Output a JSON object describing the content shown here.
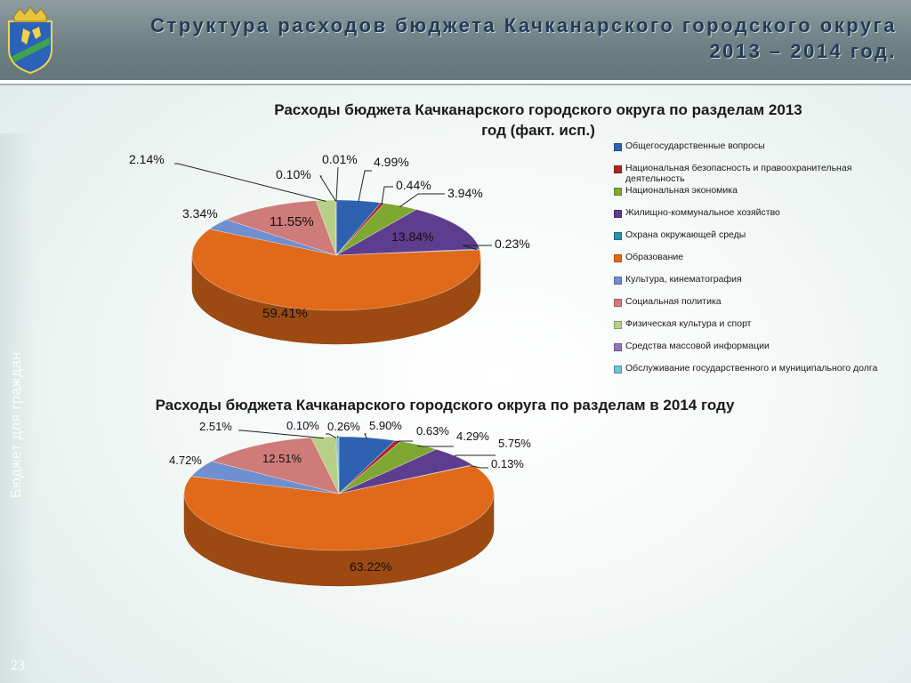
{
  "header": {
    "title_line1": "Структура расходов бюджета Качканарского городского округа",
    "title_line2": "2013 – 2014 год."
  },
  "sidebar": {
    "text": "Бюджет для граждан"
  },
  "page_number": "23",
  "colors": {
    "header": "#6f8185",
    "title": "#253b57"
  },
  "chart_data": [
    {
      "type": "pie",
      "title": "Расходы бюджета Качканарского городского округа по разделам 2013 год (факт. исп.)",
      "title_lines": [
        "Расходы бюджета Качканарского городского округа по разделам 2013",
        "год (факт. исп.)"
      ],
      "legend_position": "right",
      "slices": [
        {
          "label": "Общегосударственные вопросы",
          "value": 4.99,
          "display": "4.99%",
          "color": "#2e62b0"
        },
        {
          "label": "Национальная безопасность и правоохранительная деятельность",
          "value": 0.44,
          "display": "0.44%",
          "color": "#a8282a"
        },
        {
          "label": "Национальная экономика",
          "value": 3.94,
          "display": "3.94%",
          "color": "#7fa832"
        },
        {
          "label": "Жилищно-коммунальное хозяйство",
          "value": 13.84,
          "display": "13.84%",
          "color": "#5e3d8e"
        },
        {
          "label": "Охрана окружающей среды",
          "value": 0.23,
          "display": "0.23%",
          "color": "#2d8fa9"
        },
        {
          "label": "Образование",
          "value": 59.41,
          "display": "59.41%",
          "color": "#e06a1a"
        },
        {
          "label": "Культура, кинематография",
          "value": 3.34,
          "display": "3.34%",
          "color": "#6f8fcf"
        },
        {
          "label": "Социальная политика",
          "value": 11.55,
          "display": "11.55%",
          "color": "#cf7b79"
        },
        {
          "label": "Физическая культура и спорт",
          "value": 2.14,
          "display": "2.14%",
          "color": "#b7cf86"
        },
        {
          "label": "Средства массовой информации",
          "value": 0.1,
          "display": "0.10%",
          "color": "#8e7ab5"
        },
        {
          "label": "Обслуживание государственного и муниципального долга",
          "value": 0.01,
          "display": "0.01%",
          "color": "#6fc3d6"
        }
      ]
    },
    {
      "type": "pie",
      "title": "Расходы бюджета Качканарского городского округа по разделам в 2014 году",
      "title_lines": [
        "Расходы бюджета Качканарского городского округа по разделам в 2014 году"
      ],
      "legend_position": "right",
      "slices": [
        {
          "label": "Общегосударственные вопросы",
          "value": 5.9,
          "display": "5.90%",
          "color": "#2e62b0"
        },
        {
          "label": "Национальная безопасность и правоохранительная деятельность",
          "value": 0.63,
          "display": "0.63%",
          "color": "#a8282a"
        },
        {
          "label": "Национальная экономика",
          "value": 4.29,
          "display": "4.29%",
          "color": "#7fa832"
        },
        {
          "label": "Жилищно-коммунальное хозяйство",
          "value": 5.75,
          "display": "5.75%",
          "color": "#5e3d8e"
        },
        {
          "label": "Охрана окружающей среды",
          "value": 0.13,
          "display": "0.13%",
          "color": "#2d8fa9"
        },
        {
          "label": "Образование",
          "value": 63.22,
          "display": "63.22%",
          "color": "#e06a1a"
        },
        {
          "label": "Культура, кинематография",
          "value": 4.72,
          "display": "4.72%",
          "color": "#6f8fcf"
        },
        {
          "label": "Социальная политика",
          "value": 12.51,
          "display": "12.51%",
          "color": "#cf7b79"
        },
        {
          "label": "Физическая культура и спорт",
          "value": 2.51,
          "display": "2.51%",
          "color": "#b7cf86"
        },
        {
          "label": "Средства массовой информации",
          "value": 0.1,
          "display": "0.10%",
          "color": "#8e7ab5"
        },
        {
          "label": "Обслуживание государственного и муниципального долга",
          "value": 0.26,
          "display": "0.26%",
          "color": "#6fc3d6"
        }
      ]
    }
  ]
}
